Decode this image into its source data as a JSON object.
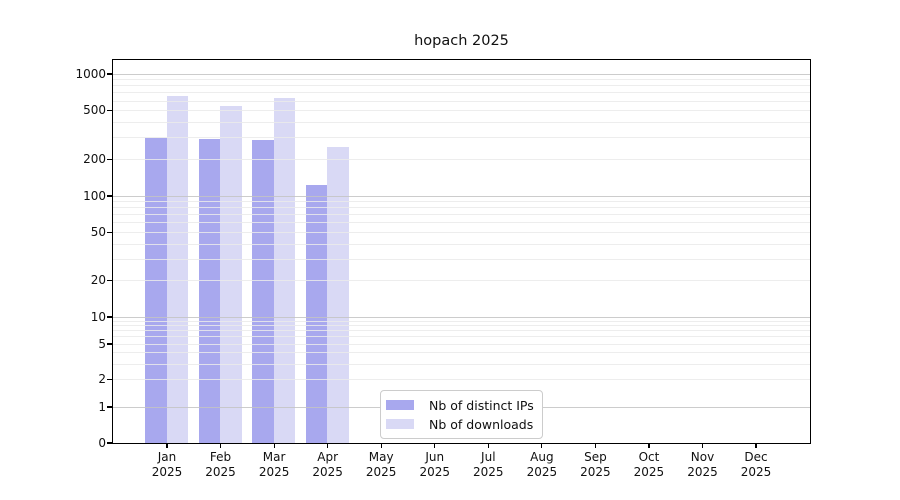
{
  "chart_data": {
    "type": "bar",
    "title": "hopach 2025",
    "x_categories": [
      {
        "month": "Jan",
        "year": "2025"
      },
      {
        "month": "Feb",
        "year": "2025"
      },
      {
        "month": "Mar",
        "year": "2025"
      },
      {
        "month": "Apr",
        "year": "2025"
      },
      {
        "month": "May",
        "year": "2025"
      },
      {
        "month": "Jun",
        "year": "2025"
      },
      {
        "month": "Jul",
        "year": "2025"
      },
      {
        "month": "Aug",
        "year": "2025"
      },
      {
        "month": "Sep",
        "year": "2025"
      },
      {
        "month": "Oct",
        "year": "2025"
      },
      {
        "month": "Nov",
        "year": "2025"
      },
      {
        "month": "Dec",
        "year": "2025"
      }
    ],
    "series": [
      {
        "name": "Nb of distinct IPs",
        "color": "#a8a8ee",
        "values": [
          300,
          296,
          290,
          124,
          null,
          null,
          null,
          null,
          null,
          null,
          null,
          null
        ]
      },
      {
        "name": "Nb of downloads",
        "color": "#d9d9f5",
        "values": [
          660,
          545,
          630,
          250,
          null,
          null,
          null,
          null,
          null,
          null,
          null,
          null
        ]
      }
    ],
    "y_axis": {
      "scale": "log above 1, linear 0-1",
      "tick_labels": [
        0,
        1,
        2,
        5,
        10,
        20,
        50,
        100,
        200,
        500,
        1000
      ],
      "major_gridline_values": [
        1,
        10,
        100,
        1000
      ],
      "range": [
        0,
        1000
      ]
    },
    "legend": {
      "position": "inside bottom-center"
    },
    "colors": {
      "grid_major": "rgba(195,195,195,0.85)",
      "grid_minor": "rgba(234,234,234,0.85)",
      "axis": "#000000"
    }
  }
}
